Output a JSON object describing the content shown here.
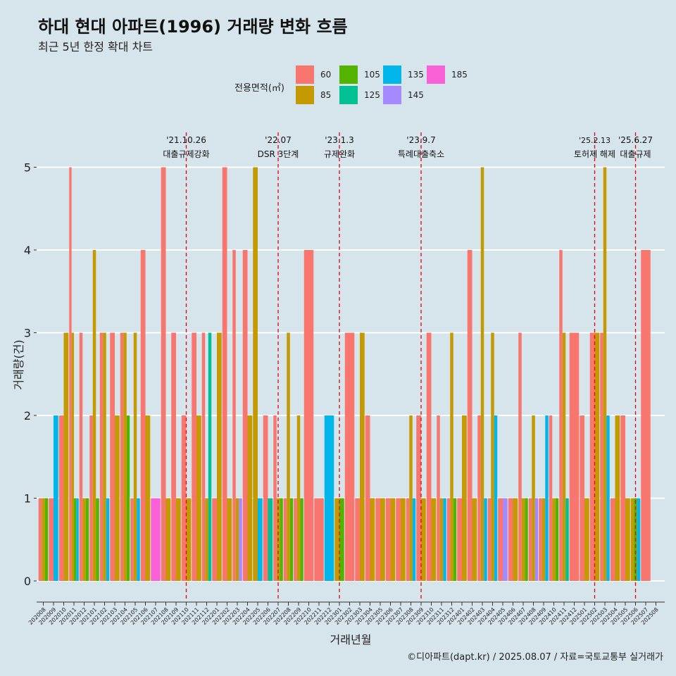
{
  "title": "하대 현대 아파트(1996) 거래량 변화 흐름",
  "subtitle": "최근 5년 한정 확대 차트",
  "caption": "©디아파트(dapt.kr) / 2025.08.07 / 자료=국토교통부 실거래가",
  "legend": {
    "title": "전용면적(㎡)",
    "entries": [
      {
        "label": "60",
        "color": "#F8766D"
      },
      {
        "label": "85",
        "color": "#C49A00"
      },
      {
        "label": "105",
        "color": "#53B400"
      },
      {
        "label": "125",
        "color": "#00C094"
      },
      {
        "label": "135",
        "color": "#00B6EB"
      },
      {
        "label": "145",
        "color": "#A58AFF"
      },
      {
        "label": "185",
        "color": "#FB61D7"
      }
    ]
  },
  "chart_data": {
    "type": "bar",
    "title": "하대 현대 아파트(1996) 거래량 변화 흐름",
    "xlabel": "거래년월",
    "ylabel": "거래량(건)",
    "ylim": [
      0,
      5
    ],
    "yticks": [
      0,
      1,
      2,
      3,
      4,
      5
    ],
    "categories": [
      "202008",
      "202009",
      "202010",
      "202011",
      "202012",
      "202101",
      "202102",
      "202103",
      "202104",
      "202105",
      "202106",
      "202107",
      "202108",
      "202109",
      "202110",
      "202111",
      "202112",
      "202201",
      "202202",
      "202203",
      "202204",
      "202205",
      "202206",
      "202207",
      "202208",
      "202209",
      "202210",
      "202211",
      "202212",
      "202301",
      "202302",
      "202303",
      "202304",
      "202305",
      "202306",
      "202307",
      "202308",
      "202309",
      "202310",
      "202311",
      "202312",
      "202401",
      "202402",
      "202403",
      "202404",
      "202405",
      "202406",
      "202407",
      "202408",
      "202409",
      "202410",
      "202411",
      "202412",
      "202501",
      "202502",
      "202503",
      "202504",
      "202505",
      "202506",
      "202507",
      "202508"
    ],
    "bars": [
      [
        "202008",
        "60",
        1
      ],
      [
        "202008",
        "85",
        1
      ],
      [
        "202008",
        "105",
        1
      ],
      [
        "202009",
        "60",
        1
      ],
      [
        "202009",
        "135",
        2
      ],
      [
        "202010",
        "60",
        2
      ],
      [
        "202010",
        "85",
        3
      ],
      [
        "202011",
        "60",
        5
      ],
      [
        "202011",
        "85",
        3
      ],
      [
        "202011",
        "105",
        1
      ],
      [
        "202011",
        "135",
        1
      ],
      [
        "202012",
        "60",
        3
      ],
      [
        "202012",
        "85",
        1
      ],
      [
        "202012",
        "105",
        1
      ],
      [
        "202101",
        "60",
        2
      ],
      [
        "202101",
        "85",
        4
      ],
      [
        "202101",
        "105",
        1
      ],
      [
        "202102",
        "60",
        3
      ],
      [
        "202102",
        "85",
        3
      ],
      [
        "202102",
        "135",
        1
      ],
      [
        "202103",
        "60",
        3
      ],
      [
        "202103",
        "85",
        2
      ],
      [
        "202104",
        "60",
        3
      ],
      [
        "202104",
        "85",
        3
      ],
      [
        "202104",
        "105",
        2
      ],
      [
        "202105",
        "60",
        1
      ],
      [
        "202105",
        "85",
        3
      ],
      [
        "202105",
        "135",
        1
      ],
      [
        "202106",
        "60",
        4
      ],
      [
        "202106",
        "85",
        2
      ],
      [
        "202107",
        "185",
        1
      ],
      [
        "202108",
        "60",
        5
      ],
      [
        "202108",
        "85",
        1
      ],
      [
        "202109",
        "60",
        3
      ],
      [
        "202109",
        "85",
        1
      ],
      [
        "202110",
        "60",
        2
      ],
      [
        "202110",
        "85",
        1
      ],
      [
        "202111",
        "60",
        3
      ],
      [
        "202111",
        "85",
        2
      ],
      [
        "202112",
        "60",
        3
      ],
      [
        "202112",
        "85",
        1
      ],
      [
        "202112",
        "125",
        3
      ],
      [
        "202201",
        "60",
        1
      ],
      [
        "202201",
        "85",
        3
      ],
      [
        "202202",
        "60",
        5
      ],
      [
        "202202",
        "85",
        1
      ],
      [
        "202203",
        "60",
        4
      ],
      [
        "202203",
        "85",
        1
      ],
      [
        "202203",
        "145",
        1
      ],
      [
        "202204",
        "60",
        4
      ],
      [
        "202204",
        "85",
        2
      ],
      [
        "202205",
        "85",
        5
      ],
      [
        "202205",
        "135",
        1
      ],
      [
        "202206",
        "60",
        2
      ],
      [
        "202206",
        "125",
        1
      ],
      [
        "202207",
        "60",
        2
      ],
      [
        "202207",
        "85",
        1
      ],
      [
        "202207",
        "105",
        1
      ],
      [
        "202208",
        "60",
        1
      ],
      [
        "202208",
        "85",
        3
      ],
      [
        "202208",
        "105",
        1
      ],
      [
        "202209",
        "60",
        1
      ],
      [
        "202209",
        "85",
        2
      ],
      [
        "202209",
        "105",
        1
      ],
      [
        "202210",
        "60",
        4
      ],
      [
        "202211",
        "60",
        1
      ],
      [
        "202212",
        "135",
        2
      ],
      [
        "202301",
        "85",
        1
      ],
      [
        "202301",
        "105",
        1
      ],
      [
        "202302",
        "60",
        3
      ],
      [
        "202303",
        "60",
        1
      ],
      [
        "202303",
        "85",
        3
      ],
      [
        "202304",
        "60",
        2
      ],
      [
        "202304",
        "85",
        1
      ],
      [
        "202305",
        "60",
        1
      ],
      [
        "202305",
        "85",
        1
      ],
      [
        "202306",
        "60",
        1
      ],
      [
        "202306",
        "85",
        1
      ],
      [
        "202307",
        "60",
        1
      ],
      [
        "202307",
        "85",
        1
      ],
      [
        "202308",
        "60",
        1
      ],
      [
        "202308",
        "85",
        2
      ],
      [
        "202308",
        "135",
        1
      ],
      [
        "202309",
        "60",
        2
      ],
      [
        "202309",
        "85",
        1
      ],
      [
        "202310",
        "60",
        3
      ],
      [
        "202310",
        "85",
        1
      ],
      [
        "202311",
        "60",
        2
      ],
      [
        "202311",
        "85",
        1
      ],
      [
        "202311",
        "135",
        1
      ],
      [
        "202312",
        "60",
        1
      ],
      [
        "202312",
        "85",
        3
      ],
      [
        "202312",
        "105",
        1
      ],
      [
        "202401",
        "60",
        1
      ],
      [
        "202401",
        "85",
        2
      ],
      [
        "202402",
        "60",
        4
      ],
      [
        "202402",
        "85",
        1
      ],
      [
        "202403",
        "60",
        2
      ],
      [
        "202403",
        "85",
        5
      ],
      [
        "202403",
        "135",
        1
      ],
      [
        "202404",
        "60",
        1
      ],
      [
        "202404",
        "85",
        3
      ],
      [
        "202404",
        "135",
        2
      ],
      [
        "202405",
        "60",
        1
      ],
      [
        "202405",
        "145",
        1
      ],
      [
        "202406",
        "60",
        1
      ],
      [
        "202406",
        "85",
        1
      ],
      [
        "202407",
        "60",
        3
      ],
      [
        "202407",
        "85",
        1
      ],
      [
        "202407",
        "105",
        1
      ],
      [
        "202408",
        "60",
        1
      ],
      [
        "202408",
        "85",
        2
      ],
      [
        "202408",
        "145",
        1
      ],
      [
        "202409",
        "60",
        1
      ],
      [
        "202409",
        "85",
        1
      ],
      [
        "202409",
        "135",
        2
      ],
      [
        "202410",
        "60",
        2
      ],
      [
        "202410",
        "85",
        1
      ],
      [
        "202410",
        "105",
        1
      ],
      [
        "202411",
        "60",
        4
      ],
      [
        "202411",
        "85",
        3
      ],
      [
        "202411",
        "125",
        1
      ],
      [
        "202412",
        "60",
        3
      ],
      [
        "202501",
        "60",
        2
      ],
      [
        "202501",
        "85",
        1
      ],
      [
        "202502",
        "60",
        3
      ],
      [
        "202502",
        "85",
        3
      ],
      [
        "202503",
        "60",
        3
      ],
      [
        "202503",
        "85",
        5
      ],
      [
        "202503",
        "135",
        2
      ],
      [
        "202504",
        "60",
        1
      ],
      [
        "202504",
        "85",
        2
      ],
      [
        "202505",
        "60",
        2
      ],
      [
        "202505",
        "85",
        1
      ],
      [
        "202506",
        "85",
        1
      ],
      [
        "202506",
        "105",
        1
      ],
      [
        "202506",
        "135",
        1
      ],
      [
        "202507",
        "60",
        4
      ]
    ],
    "events": [
      {
        "month": "202110",
        "date": "'21.10.26",
        "label": "대출규제강화"
      },
      {
        "month": "202207",
        "date": "'22.07",
        "label": "DSR 3단계"
      },
      {
        "month": "202301",
        "date": "'23.1.3",
        "label": "규제완화"
      },
      {
        "month": "202309",
        "date": "'23.9.7",
        "label": "특례대출축소"
      },
      {
        "month": "202502",
        "date": "'25.2.13",
        "label": "토허제 해제"
      },
      {
        "month": "202506",
        "date": "'25.6.27",
        "label": "대출규제"
      }
    ]
  }
}
